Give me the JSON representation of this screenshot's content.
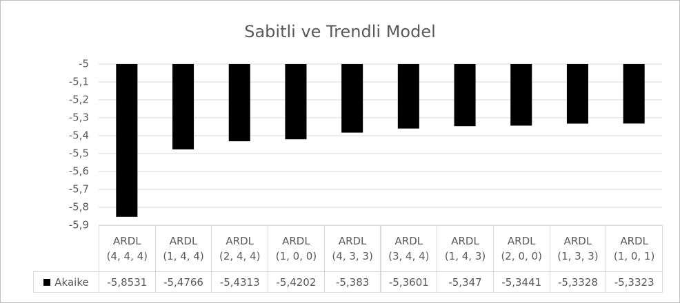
{
  "chart_data": {
    "type": "bar",
    "title": "Sabitli ve Trendli Model",
    "categories": [
      "ARDL\n(4, 4, 4)",
      "ARDL\n(1, 4, 4)",
      "ARDL\n(2, 4, 4)",
      "ARDL\n(1, 0, 0)",
      "ARDL\n(4, 3, 3)",
      "ARDL\n(3, 4, 4)",
      "ARDL\n(1, 4, 3)",
      "ARDL\n(2, 0, 0)",
      "ARDL\n(1, 3, 3)",
      "ARDL\n(1, 0, 1)"
    ],
    "series": [
      {
        "name": "Akaike",
        "color": "#000000",
        "values": [
          -5.8531,
          -5.4766,
          -5.4313,
          -5.4202,
          -5.383,
          -5.3601,
          -5.347,
          -5.3441,
          -5.3328,
          -5.3323
        ],
        "value_labels": [
          "-5,8531",
          "-5,4766",
          "-5,4313",
          "-5,4202",
          "-5,383",
          "-5,3601",
          "-5,347",
          "-5,3441",
          "-5,3328",
          "-5,3323"
        ]
      }
    ],
    "ylim": [
      -5.9,
      -5
    ],
    "yticks": [
      -5,
      {
        "value": -5.1,
        "label": "-5,1"
      },
      {
        "value": -5.2,
        "label": "-5,2"
      },
      {
        "value": -5.3,
        "label": "-5,3"
      },
      {
        "value": -5.4,
        "label": "-5,4"
      },
      {
        "value": -5.5,
        "label": "-5,5"
      },
      {
        "value": -5.6,
        "label": "-5,6"
      },
      {
        "value": -5.7,
        "label": "-5,7"
      },
      {
        "value": -5.8,
        "label": "-5,8"
      },
      {
        "value": -5.9,
        "label": "-5,9"
      }
    ],
    "grid": true
  }
}
